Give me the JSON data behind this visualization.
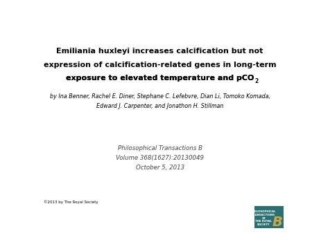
{
  "title_line1": "Emiliania huxleyi increases calcification but not",
  "title_line2": "expression of calcification-related genes in long-term",
  "title_line3_main": "exposure to elevated temperature and pCO",
  "title_line3_sub": "2",
  "authors_line1": "by Ina Benner, Rachel E. Diner, Stephane C. Lefebvre, Dian Li, Tomoko Komada,",
  "authors_line2": "Edward J. Carpenter, and Jonathon H. Stillman",
  "journal_line1": "Philosophical Transactions B",
  "journal_line2": "Volume 368(1627):20130049",
  "journal_line3": "October 5, 2013",
  "copyright": "©2013 by The Royal Society",
  "background_color": "#ffffff",
  "title_fontsize": 8.0,
  "authors_fontsize": 5.8,
  "journal_fontsize": 6.2,
  "copyright_fontsize": 4.0,
  "title_color": "#000000",
  "authors_color": "#000000",
  "journal_color": "#444444",
  "copyright_color": "#000000",
  "logo_bg_color": "#2a7070",
  "logo_b_color": "#c8a84b",
  "logo_text_color": "#ffffff"
}
